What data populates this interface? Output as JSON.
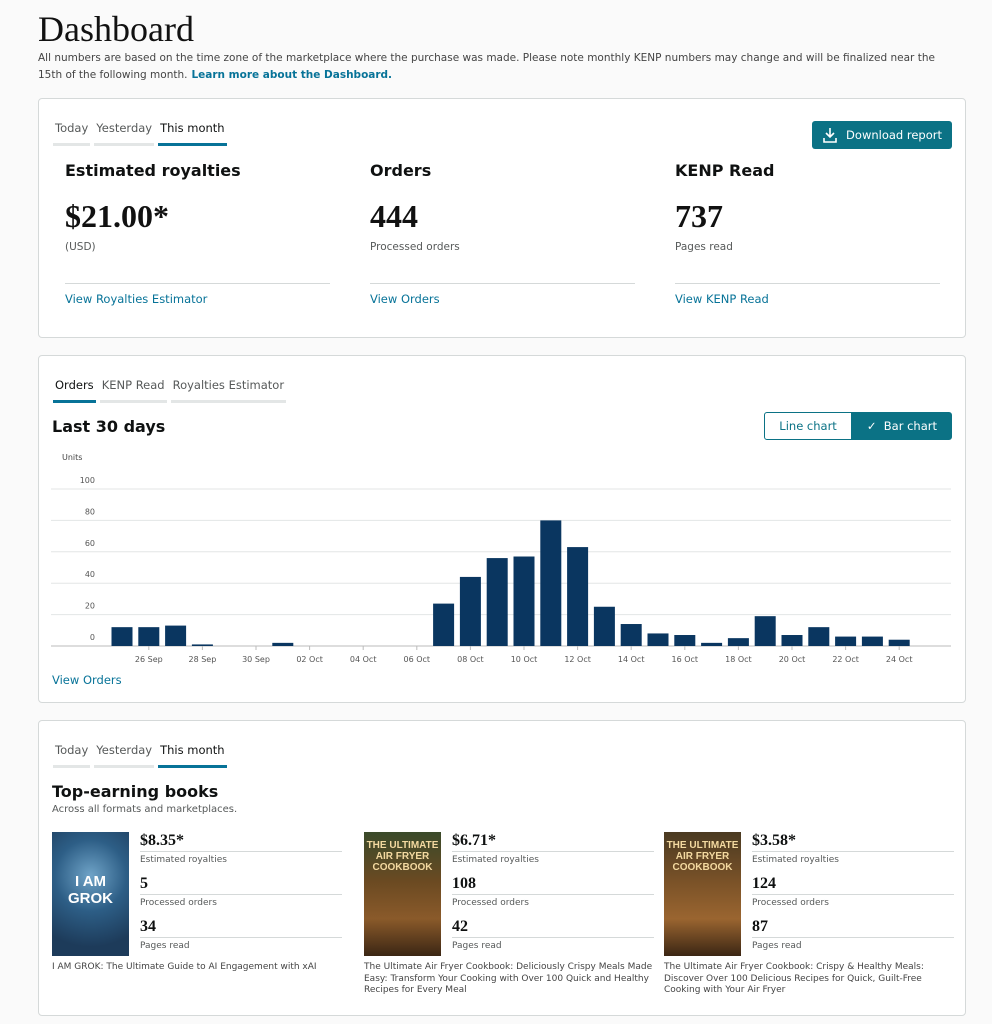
{
  "header": {
    "title": "Dashboard",
    "intro": "All numbers are based on the time zone of the marketplace where the purchase was made. Please note monthly KENP numbers may change and will be finalized near the 15th of the following month.",
    "learn_more": "Learn more about the Dashboard."
  },
  "summary": {
    "tabs": [
      "Today",
      "Yesterday",
      "This month"
    ],
    "active_tab": "This month",
    "download": "Download report",
    "metrics": [
      {
        "title": "Estimated royalties",
        "value": "$21.00*",
        "sub": "(USD)",
        "link": "View Royalties Estimator"
      },
      {
        "title": "Orders",
        "value": "444",
        "sub": "Processed orders",
        "link": "View Orders"
      },
      {
        "title": "KENP Read",
        "value": "737",
        "sub": "Pages read",
        "link": "View KENP Read"
      }
    ]
  },
  "chart_panel": {
    "tabs": [
      "Orders",
      "KENP Read",
      "Royalties Estimator"
    ],
    "active_tab": "Orders",
    "title": "Last 30 days",
    "line_chart": "Line chart",
    "bar_chart": "Bar chart",
    "bar_chart_selected": true,
    "view_link": "View Orders"
  },
  "chart_data": {
    "type": "bar",
    "ylabel": "Units",
    "ylim": [
      0,
      100
    ],
    "yticks": [
      0,
      20,
      40,
      60,
      80,
      100
    ],
    "grid": true,
    "color": "#0a3660",
    "categories": [
      "25 Sep",
      "26 Sep",
      "27 Sep",
      "28 Sep",
      "29 Sep",
      "30 Sep",
      "01 Oct",
      "02 Oct",
      "03 Oct",
      "04 Oct",
      "05 Oct",
      "06 Oct",
      "07 Oct",
      "08 Oct",
      "09 Oct",
      "10 Oct",
      "11 Oct",
      "12 Oct",
      "13 Oct",
      "14 Oct",
      "15 Oct",
      "16 Oct",
      "17 Oct",
      "18 Oct",
      "19 Oct",
      "20 Oct",
      "21 Oct",
      "22 Oct",
      "23 Oct",
      "24 Oct",
      "25 Oct"
    ],
    "values": [
      12,
      12,
      13,
      1,
      0,
      0,
      2,
      0,
      0,
      0,
      0,
      0,
      27,
      44,
      56,
      57,
      80,
      63,
      25,
      14,
      8,
      7,
      2,
      5,
      19,
      7,
      12,
      6,
      6,
      4,
      0
    ],
    "xtick_labels": [
      "26 Sep",
      "28 Sep",
      "30 Sep",
      "02 Oct",
      "04 Oct",
      "06 Oct",
      "08 Oct",
      "10 Oct",
      "12 Oct",
      "14 Oct",
      "16 Oct",
      "18 Oct",
      "20 Oct",
      "22 Oct",
      "24 Oct"
    ]
  },
  "top_books": {
    "tabs": [
      "Today",
      "Yesterday",
      "This month"
    ],
    "active_tab": "This month",
    "title": "Top-earning books",
    "subtitle": "Across all formats and marketplaces.",
    "labels": {
      "royalties": "Estimated royalties",
      "orders": "Processed orders",
      "pages": "Pages read"
    },
    "books": [
      {
        "royalties": "$8.35*",
        "orders": "5",
        "pages": "34",
        "name": "I AM GROK: The Ultimate Guide to AI Engagement with xAI",
        "cover_text": "I AM GROK"
      },
      {
        "royalties": "$6.71*",
        "orders": "108",
        "pages": "42",
        "name": "The Ultimate Air Fryer Cookbook: Deliciously Crispy Meals Made Easy: Transform Your Cooking with Over 100 Quick and Healthy Recipes for Every Meal",
        "cover_text": "THE ULTIMATE AIR FRYER COOKBOOK"
      },
      {
        "royalties": "$3.58*",
        "orders": "124",
        "pages": "87",
        "name": "The Ultimate Air Fryer Cookbook: Crispy & Healthy Meals: Discover Over 100 Delicious Recipes for Quick, Guilt-Free Cooking with Your Air Fryer",
        "cover_text": "THE ULTIMATE AIR FRYER COOKBOOK"
      }
    ]
  }
}
